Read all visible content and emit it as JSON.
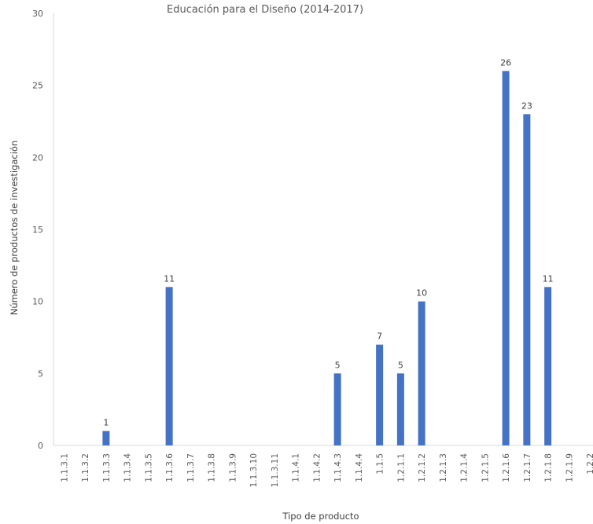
{
  "chart_data": {
    "type": "bar",
    "title": "Educación para el Diseño (2014-2017)",
    "xlabel": "Tipo de producto",
    "ylabel": "Número de productos de investigación",
    "ylim": [
      0,
      30
    ],
    "yticks": [
      0,
      5,
      10,
      15,
      20,
      25,
      30
    ],
    "grid": false,
    "legend": "none",
    "bar_color": "#4472C4",
    "categories": [
      "1.1.3.1",
      "1.1.3.2",
      "1.1.3.3",
      "1.1.3.4",
      "1.1.3.5",
      "1.1.3.6",
      "1.1.3.7",
      "1.1.3.8",
      "1.1.3.9",
      "1.1.3.10",
      "1.1.3.11",
      "1.1.4.1",
      "1.1.4.2",
      "1.1.4.3",
      "1.1.4.4",
      "1.1.5",
      "1.2.1.1",
      "1.2.1.2",
      "1.2.1.3",
      "1.2.1.4",
      "1.2.1.5",
      "1.2.1.6",
      "1.2.1.7",
      "1.2.1.8",
      "1.2.1.9",
      "1.2.2"
    ],
    "values": [
      0,
      0,
      1,
      0,
      0,
      11,
      0,
      0,
      0,
      0,
      0,
      0,
      0,
      5,
      0,
      7,
      5,
      10,
      0,
      0,
      0,
      26,
      23,
      11,
      0,
      0
    ],
    "data_labels": [
      "",
      "",
      "1",
      "",
      "",
      "11",
      "",
      "",
      "",
      "",
      "",
      "",
      "",
      "5",
      "",
      "7",
      "5",
      "10",
      "",
      "",
      "",
      "26",
      "23",
      "11",
      "",
      ""
    ]
  }
}
